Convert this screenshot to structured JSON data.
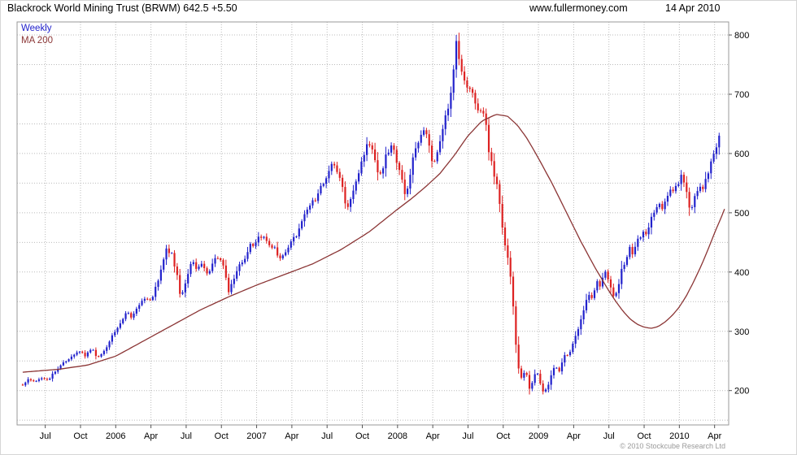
{
  "header": {
    "title": "Blackrock World Mining Trust (BRWM) 642.5 +5.50",
    "website": "www.fullermoney.com",
    "date": "14 Apr 2010"
  },
  "legend": {
    "weekly": "Weekly",
    "ma": "MA 200"
  },
  "footer": {
    "copyright": "© 2010 Stockcube Research Ltd"
  },
  "colors": {
    "up": "#2222cc",
    "down": "#dd2222",
    "ma": "#8b3535",
    "grid": "#bbbbbb",
    "border": "#999999",
    "tick": "#555555",
    "text": "#000000",
    "copyright": "#999999"
  },
  "chart_data": {
    "type": "candlestick",
    "title": "Blackrock World Mining Trust (BRWM)",
    "frequency": "Weekly",
    "overlay": "MA 200",
    "last_price": 642.5,
    "change": "+5.50",
    "ylim": [
      142,
      822
    ],
    "y_ticks": [
      200,
      300,
      400,
      500,
      600,
      700,
      800
    ],
    "y_minor_step": 50,
    "t_range": [
      2005.3,
      2010.35
    ],
    "candle_range": [
      2005.34,
      2010.3
    ],
    "x_ticks": [
      {
        "label": "Jul",
        "t": 2005.5
      },
      {
        "label": "Oct",
        "t": 2005.75
      },
      {
        "label": "2006",
        "t": 2006.0
      },
      {
        "label": "Apr",
        "t": 2006.25
      },
      {
        "label": "Jul",
        "t": 2006.5
      },
      {
        "label": "Oct",
        "t": 2006.75
      },
      {
        "label": "2007",
        "t": 2007.0
      },
      {
        "label": "Apr",
        "t": 2007.25
      },
      {
        "label": "Jul",
        "t": 2007.5
      },
      {
        "label": "Oct",
        "t": 2007.75
      },
      {
        "label": "2008",
        "t": 2008.0
      },
      {
        "label": "Apr",
        "t": 2008.25
      },
      {
        "label": "Jul",
        "t": 2008.5
      },
      {
        "label": "Oct",
        "t": 2008.75
      },
      {
        "label": "2009",
        "t": 2009.0
      },
      {
        "label": "Apr",
        "t": 2009.25
      },
      {
        "label": "Jul",
        "t": 2009.5
      },
      {
        "label": "Oct",
        "t": 2009.75
      },
      {
        "label": "2010",
        "t": 2010.0
      },
      {
        "label": "Apr",
        "t": 2010.25
      }
    ],
    "close_anchors": [
      [
        2005.34,
        211
      ],
      [
        2005.38,
        218
      ],
      [
        2005.42,
        214
      ],
      [
        2005.48,
        222
      ],
      [
        2005.52,
        219
      ],
      [
        2005.58,
        235
      ],
      [
        2005.65,
        250
      ],
      [
        2005.71,
        260
      ],
      [
        2005.75,
        268
      ],
      [
        2005.79,
        258
      ],
      [
        2005.83,
        272
      ],
      [
        2005.87,
        256
      ],
      [
        2005.92,
        266
      ],
      [
        2005.96,
        286
      ],
      [
        2006.0,
        302
      ],
      [
        2006.04,
        320
      ],
      [
        2006.08,
        332
      ],
      [
        2006.12,
        324
      ],
      [
        2006.17,
        346
      ],
      [
        2006.21,
        356
      ],
      [
        2006.25,
        350
      ],
      [
        2006.29,
        378
      ],
      [
        2006.33,
        412
      ],
      [
        2006.36,
        442
      ],
      [
        2006.4,
        428
      ],
      [
        2006.44,
        388
      ],
      [
        2006.46,
        356
      ],
      [
        2006.5,
        382
      ],
      [
        2006.54,
        420
      ],
      [
        2006.58,
        404
      ],
      [
        2006.62,
        412
      ],
      [
        2006.65,
        396
      ],
      [
        2006.69,
        418
      ],
      [
        2006.73,
        428
      ],
      [
        2006.77,
        404
      ],
      [
        2006.8,
        366
      ],
      [
        2006.85,
        394
      ],
      [
        2006.88,
        410
      ],
      [
        2006.92,
        426
      ],
      [
        2006.96,
        446
      ],
      [
        2007.0,
        452
      ],
      [
        2007.04,
        462
      ],
      [
        2007.08,
        450
      ],
      [
        2007.13,
        438
      ],
      [
        2007.17,
        424
      ],
      [
        2007.21,
        438
      ],
      [
        2007.25,
        452
      ],
      [
        2007.29,
        466
      ],
      [
        2007.33,
        490
      ],
      [
        2007.37,
        512
      ],
      [
        2007.42,
        522
      ],
      [
        2007.46,
        546
      ],
      [
        2007.5,
        562
      ],
      [
        2007.54,
        586
      ],
      [
        2007.58,
        566
      ],
      [
        2007.62,
        532
      ],
      [
        2007.64,
        504
      ],
      [
        2007.67,
        530
      ],
      [
        2007.71,
        556
      ],
      [
        2007.75,
        592
      ],
      [
        2007.79,
        622
      ],
      [
        2007.82,
        608
      ],
      [
        2007.85,
        576
      ],
      [
        2007.88,
        562
      ],
      [
        2007.92,
        596
      ],
      [
        2007.96,
        612
      ],
      [
        2008.0,
        586
      ],
      [
        2008.04,
        548
      ],
      [
        2008.06,
        528
      ],
      [
        2008.1,
        582
      ],
      [
        2008.15,
        622
      ],
      [
        2008.19,
        642
      ],
      [
        2008.23,
        602
      ],
      [
        2008.25,
        582
      ],
      [
        2008.29,
        612
      ],
      [
        2008.33,
        652
      ],
      [
        2008.37,
        692
      ],
      [
        2008.4,
        752
      ],
      [
        2008.42,
        788
      ],
      [
        2008.44,
        762
      ],
      [
        2008.46,
        732
      ],
      [
        2008.5,
        702
      ],
      [
        2008.52,
        722
      ],
      [
        2008.54,
        692
      ],
      [
        2008.58,
        662
      ],
      [
        2008.6,
        672
      ],
      [
        2008.63,
        642
      ],
      [
        2008.65,
        602
      ],
      [
        2008.69,
        562
      ],
      [
        2008.71,
        542
      ],
      [
        2008.73,
        502
      ],
      [
        2008.75,
        462
      ],
      [
        2008.77,
        432
      ],
      [
        2008.79,
        418
      ],
      [
        2008.81,
        378
      ],
      [
        2008.83,
        308
      ],
      [
        2008.85,
        248
      ],
      [
        2008.87,
        228
      ],
      [
        2008.89,
        208
      ],
      [
        2008.9,
        236
      ],
      [
        2008.92,
        224
      ],
      [
        2008.94,
        198
      ],
      [
        2008.96,
        216
      ],
      [
        2008.98,
        232
      ],
      [
        2009.0,
        224
      ],
      [
        2009.02,
        208
      ],
      [
        2009.04,
        192
      ],
      [
        2009.06,
        206
      ],
      [
        2009.08,
        216
      ],
      [
        2009.1,
        232
      ],
      [
        2009.12,
        242
      ],
      [
        2009.15,
        234
      ],
      [
        2009.17,
        252
      ],
      [
        2009.19,
        262
      ],
      [
        2009.21,
        256
      ],
      [
        2009.25,
        282
      ],
      [
        2009.29,
        312
      ],
      [
        2009.33,
        342
      ],
      [
        2009.35,
        362
      ],
      [
        2009.38,
        354
      ],
      [
        2009.4,
        372
      ],
      [
        2009.42,
        386
      ],
      [
        2009.44,
        374
      ],
      [
        2009.46,
        392
      ],
      [
        2009.48,
        402
      ],
      [
        2009.5,
        382
      ],
      [
        2009.52,
        366
      ],
      [
        2009.54,
        352
      ],
      [
        2009.56,
        372
      ],
      [
        2009.58,
        392
      ],
      [
        2009.6,
        412
      ],
      [
        2009.63,
        426
      ],
      [
        2009.65,
        442
      ],
      [
        2009.67,
        432
      ],
      [
        2009.69,
        446
      ],
      [
        2009.71,
        456
      ],
      [
        2009.75,
        472
      ],
      [
        2009.77,
        462
      ],
      [
        2009.79,
        482
      ],
      [
        2009.81,
        496
      ],
      [
        2009.83,
        506
      ],
      [
        2009.85,
        516
      ],
      [
        2009.88,
        502
      ],
      [
        2009.9,
        522
      ],
      [
        2009.92,
        536
      ],
      [
        2009.94,
        546
      ],
      [
        2009.96,
        540
      ],
      [
        2010.0,
        556
      ],
      [
        2010.02,
        562
      ],
      [
        2010.04,
        546
      ],
      [
        2010.06,
        522
      ],
      [
        2010.08,
        506
      ],
      [
        2010.1,
        516
      ],
      [
        2010.12,
        532
      ],
      [
        2010.15,
        546
      ],
      [
        2010.17,
        540
      ],
      [
        2010.19,
        556
      ],
      [
        2010.21,
        572
      ],
      [
        2010.23,
        586
      ],
      [
        2010.25,
        602
      ],
      [
        2010.27,
        618
      ],
      [
        2010.29,
        638
      ],
      [
        2010.3,
        642.5
      ]
    ],
    "ma200_anchors": [
      [
        2005.34,
        231
      ],
      [
        2005.6,
        236
      ],
      [
        2005.8,
        243
      ],
      [
        2006.0,
        258
      ],
      [
        2006.2,
        284
      ],
      [
        2006.4,
        310
      ],
      [
        2006.6,
        336
      ],
      [
        2006.8,
        358
      ],
      [
        2007.0,
        378
      ],
      [
        2007.2,
        396
      ],
      [
        2007.4,
        414
      ],
      [
        2007.6,
        438
      ],
      [
        2007.8,
        468
      ],
      [
        2008.0,
        506
      ],
      [
        2008.1,
        524
      ],
      [
        2008.2,
        544
      ],
      [
        2008.3,
        566
      ],
      [
        2008.4,
        596
      ],
      [
        2008.5,
        630
      ],
      [
        2008.6,
        655
      ],
      [
        2008.7,
        666
      ],
      [
        2008.78,
        663
      ],
      [
        2008.85,
        648
      ],
      [
        2008.92,
        625
      ],
      [
        2009.0,
        592
      ],
      [
        2009.1,
        548
      ],
      [
        2009.2,
        500
      ],
      [
        2009.3,
        452
      ],
      [
        2009.4,
        408
      ],
      [
        2009.45,
        388
      ],
      [
        2009.5,
        368
      ],
      [
        2009.55,
        350
      ],
      [
        2009.6,
        334
      ],
      [
        2009.65,
        321
      ],
      [
        2009.7,
        312
      ],
      [
        2009.75,
        307
      ],
      [
        2009.8,
        305
      ],
      [
        2009.85,
        308
      ],
      [
        2009.9,
        316
      ],
      [
        2009.95,
        327
      ],
      [
        2010.0,
        341
      ],
      [
        2010.05,
        360
      ],
      [
        2010.1,
        383
      ],
      [
        2010.15,
        408
      ],
      [
        2010.2,
        436
      ],
      [
        2010.25,
        466
      ],
      [
        2010.3,
        494
      ],
      [
        2010.33,
        512
      ]
    ]
  }
}
